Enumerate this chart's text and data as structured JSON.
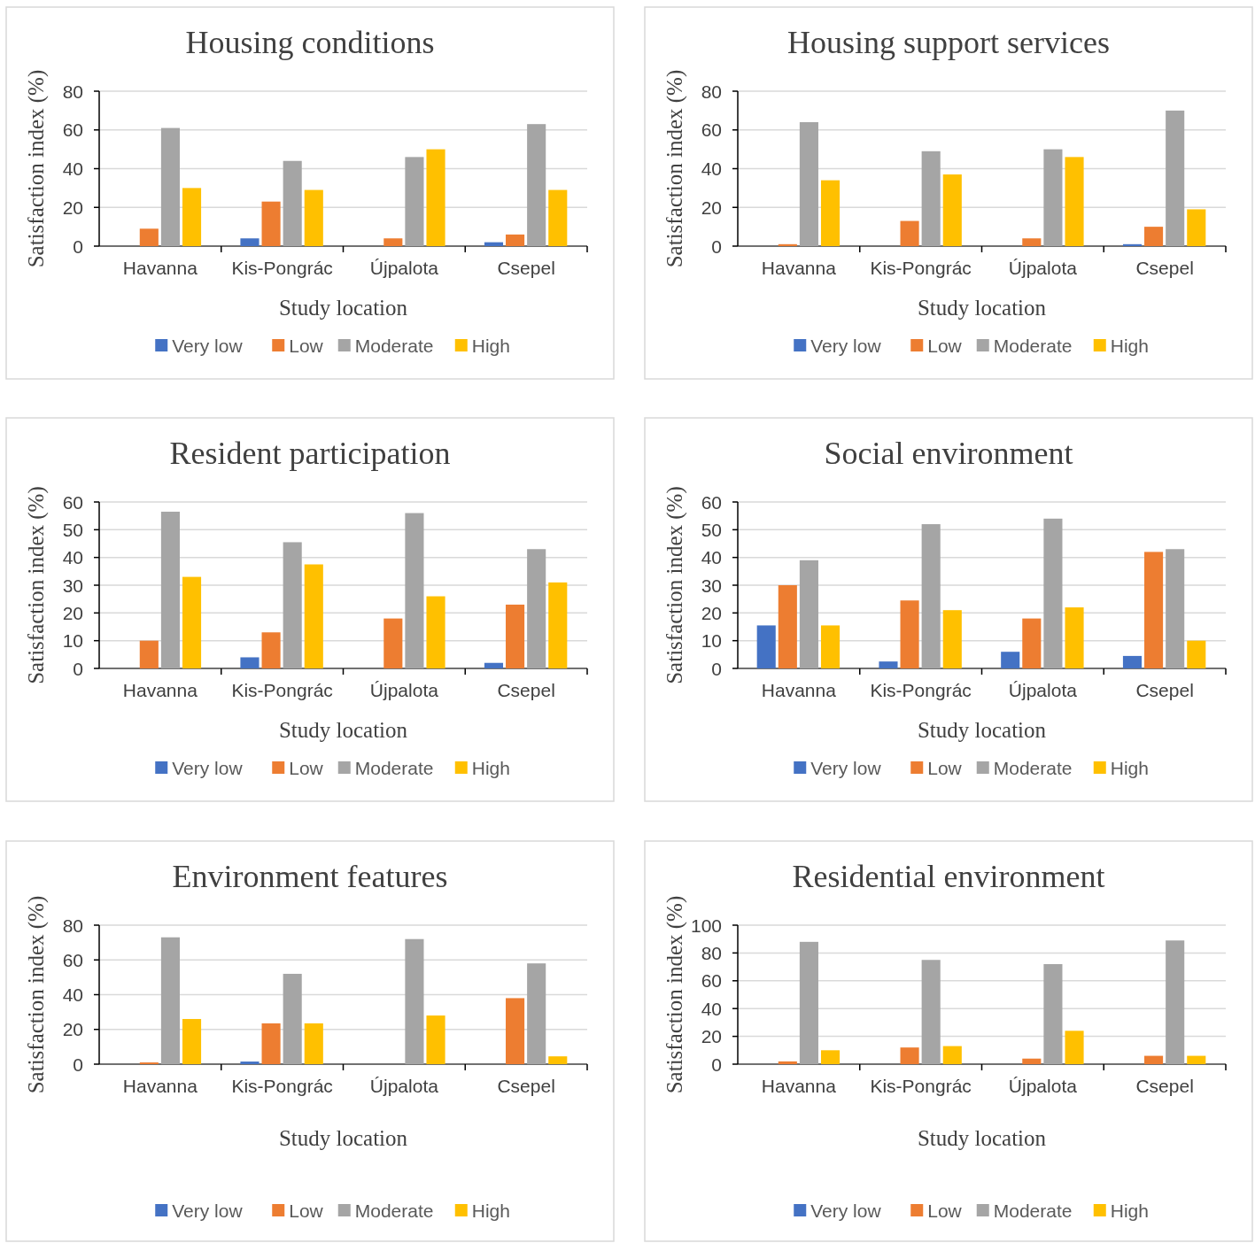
{
  "chart_data": [
    {
      "type": "bar",
      "title": "Housing conditions",
      "xlabel": "Study location",
      "ylabel": "Satisfaction index (%)",
      "categories": [
        "Havanna",
        "Kis-Pongrác",
        "Újpalota",
        "Csepel"
      ],
      "ylim": [
        0,
        80
      ],
      "yticks": [
        0,
        20,
        40,
        60,
        80
      ],
      "grid": "y",
      "legend": "bottom",
      "series": [
        {
          "name": "Very low",
          "color": "#4472c4",
          "values": [
            0,
            4,
            0,
            2
          ]
        },
        {
          "name": "Low",
          "color": "#ed7d31",
          "values": [
            9,
            23,
            4,
            6
          ]
        },
        {
          "name": "Moderate",
          "color": "#a5a5a5",
          "values": [
            61,
            44,
            46,
            63
          ]
        },
        {
          "name": "High",
          "color": "#ffc000",
          "values": [
            30,
            29,
            50,
            29
          ]
        }
      ]
    },
    {
      "type": "bar",
      "title": "Housing support services",
      "xlabel": "Study location",
      "ylabel": "Satisfaction index (%)",
      "categories": [
        "Havanna",
        "Kis-Pongrác",
        "Újpalota",
        "Csepel"
      ],
      "ylim": [
        0,
        80
      ],
      "yticks": [
        0,
        20,
        40,
        60,
        80
      ],
      "grid": "y",
      "legend": "bottom",
      "series": [
        {
          "name": "Very low",
          "color": "#4472c4",
          "values": [
            0,
            0,
            0,
            1
          ]
        },
        {
          "name": "Low",
          "color": "#ed7d31",
          "values": [
            1,
            13,
            4,
            10
          ]
        },
        {
          "name": "Moderate",
          "color": "#a5a5a5",
          "values": [
            64,
            49,
            50,
            70
          ]
        },
        {
          "name": "High",
          "color": "#ffc000",
          "values": [
            34,
            37,
            46,
            19
          ]
        }
      ]
    },
    {
      "type": "bar",
      "title": "Resident participation",
      "xlabel": "Study location",
      "ylabel": "Satisfaction index (%)",
      "categories": [
        "Havanna",
        "Kis-Pongrác",
        "Újpalota",
        "Csepel"
      ],
      "ylim": [
        0,
        60
      ],
      "yticks": [
        0,
        10,
        20,
        30,
        40,
        50,
        60
      ],
      "grid": "y",
      "legend": "bottom",
      "series": [
        {
          "name": "Very low",
          "color": "#4472c4",
          "values": [
            0,
            4,
            0,
            2
          ]
        },
        {
          "name": "Low",
          "color": "#ed7d31",
          "values": [
            10,
            13,
            18,
            23
          ]
        },
        {
          "name": "Moderate",
          "color": "#a5a5a5",
          "values": [
            56.5,
            45.5,
            56,
            43
          ]
        },
        {
          "name": "High",
          "color": "#ffc000",
          "values": [
            33,
            37.5,
            26,
            31
          ]
        }
      ]
    },
    {
      "type": "bar",
      "title": "Social environment",
      "xlabel": "Study location",
      "ylabel": "Satisfaction index (%)",
      "categories": [
        "Havanna",
        "Kis-Pongrác",
        "Újpalota",
        "Csepel"
      ],
      "ylim": [
        0,
        60
      ],
      "yticks": [
        0,
        10,
        20,
        30,
        40,
        50,
        60
      ],
      "grid": "y",
      "legend": "bottom",
      "series": [
        {
          "name": "Very low",
          "color": "#4472c4",
          "values": [
            15.5,
            2.5,
            6,
            4.5
          ]
        },
        {
          "name": "Low",
          "color": "#ed7d31",
          "values": [
            30,
            24.5,
            18,
            42
          ]
        },
        {
          "name": "Moderate",
          "color": "#a5a5a5",
          "values": [
            39,
            52,
            54,
            43
          ]
        },
        {
          "name": "High",
          "color": "#ffc000",
          "values": [
            15.5,
            21,
            22,
            10
          ]
        }
      ]
    },
    {
      "type": "bar",
      "title": "Environment features",
      "xlabel": "Study location",
      "ylabel": "Satisfaction index (%)",
      "categories": [
        "Havanna",
        "Kis-Pongrác",
        "Újpalota",
        "Csepel"
      ],
      "ylim": [
        0,
        80
      ],
      "yticks": [
        0,
        20,
        40,
        60,
        80
      ],
      "grid": "y",
      "legend": "bottom",
      "series": [
        {
          "name": "Very low",
          "color": "#4472c4",
          "values": [
            0,
            1.5,
            0,
            0
          ]
        },
        {
          "name": "Low",
          "color": "#ed7d31",
          "values": [
            1,
            23.5,
            0,
            38
          ]
        },
        {
          "name": "Moderate",
          "color": "#a5a5a5",
          "values": [
            73,
            52,
            72,
            58
          ]
        },
        {
          "name": "High",
          "color": "#ffc000",
          "values": [
            26,
            23.5,
            28,
            4.5
          ]
        }
      ]
    },
    {
      "type": "bar",
      "title": "Residential environment",
      "xlabel": "Study location",
      "ylabel": "Satisfaction index (%)",
      "categories": [
        "Havanna",
        "Kis-Pongrác",
        "Újpalota",
        "Csepel"
      ],
      "ylim": [
        0,
        100
      ],
      "yticks": [
        0,
        20,
        40,
        60,
        80,
        100
      ],
      "grid": "y",
      "legend": "bottom",
      "series": [
        {
          "name": "Very low",
          "color": "#4472c4",
          "values": [
            0,
            0,
            0,
            0
          ]
        },
        {
          "name": "Low",
          "color": "#ed7d31",
          "values": [
            2,
            12,
            4,
            6
          ]
        },
        {
          "name": "Moderate",
          "color": "#a5a5a5",
          "values": [
            88,
            75,
            72,
            89
          ]
        },
        {
          "name": "High",
          "color": "#ffc000",
          "values": [
            10,
            13,
            24,
            6
          ]
        }
      ]
    }
  ]
}
